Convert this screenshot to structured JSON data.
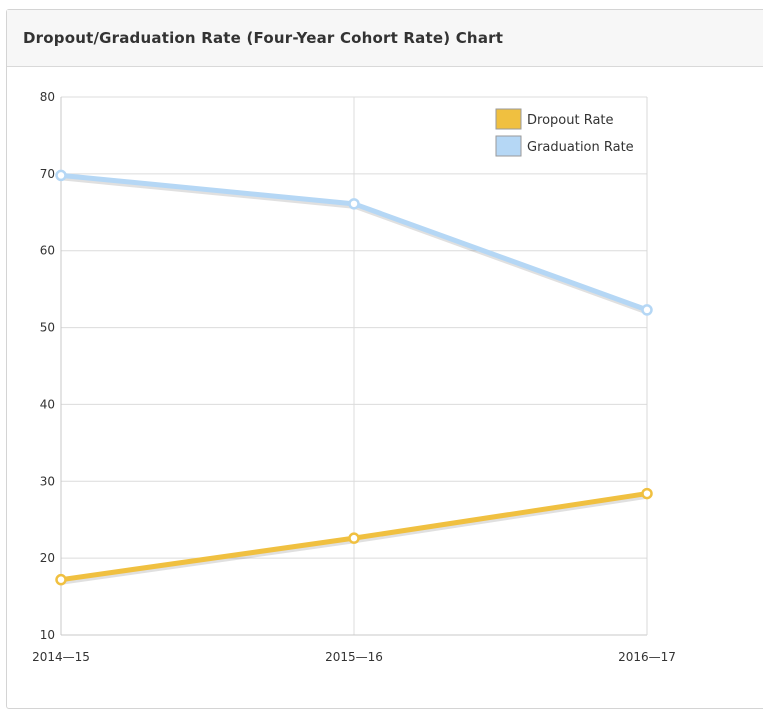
{
  "panel": {
    "title": "Dropout/Graduation Rate (Four-Year Cohort Rate) Chart"
  },
  "chart_data": {
    "type": "line",
    "title": "",
    "xlabel": "",
    "ylabel": "",
    "categories": [
      "2014—15",
      "2015—16",
      "2016—17"
    ],
    "ylim": [
      10,
      80
    ],
    "yticks": [
      10,
      20,
      30,
      40,
      50,
      60,
      70,
      80
    ],
    "grid": true,
    "legend_position": "top-right",
    "series": [
      {
        "name": "Dropout Rate",
        "color": "#f0c040",
        "values": [
          17.2,
          22.6,
          28.4
        ]
      },
      {
        "name": "Graduation Rate",
        "color": "#b5d7f5",
        "values": [
          69.8,
          66.1,
          52.3
        ]
      }
    ]
  }
}
